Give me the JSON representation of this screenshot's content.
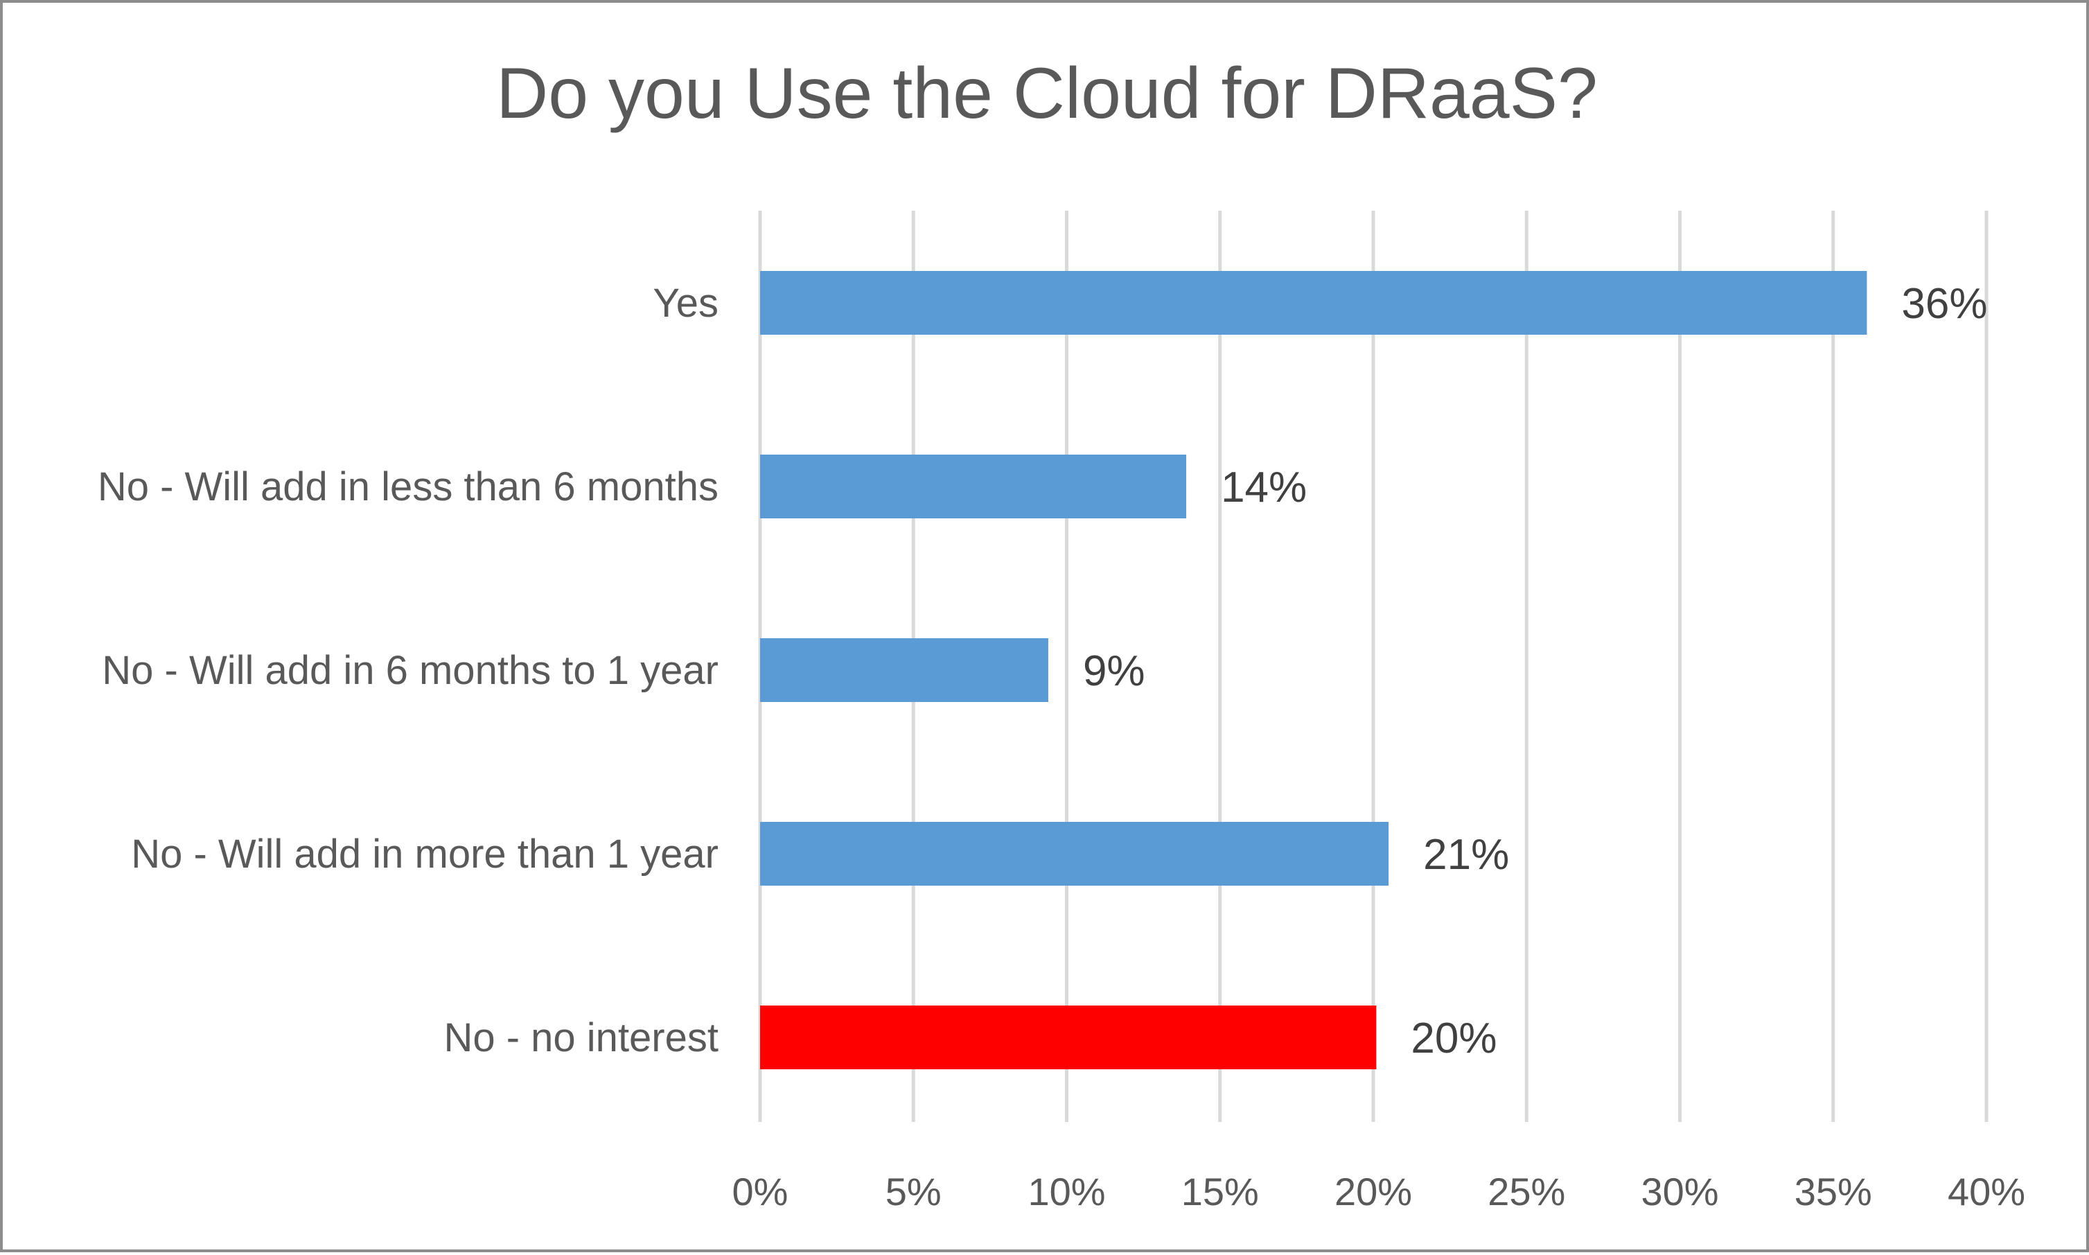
{
  "chart_data": {
    "type": "bar",
    "orientation": "horizontal",
    "title": "Do you Use the Cloud for DRaaS?",
    "xlabel": "",
    "ylabel": "",
    "categories": [
      "Yes",
      "No - Will add in less than 6 months",
      "No - Will add in 6 months to 1 year",
      "No - Will add in more than 1 year",
      "No - no interest"
    ],
    "values": [
      36.1,
      13.9,
      9.4,
      20.5,
      20.1
    ],
    "data_labels": [
      "36%",
      "14%",
      "9%",
      "21%",
      "20%"
    ],
    "bar_colors": [
      "#5b9bd5",
      "#5b9bd5",
      "#5b9bd5",
      "#5b9bd5",
      "#ff0000"
    ],
    "xlim": [
      0,
      40
    ],
    "x_ticks": [
      0,
      5,
      10,
      15,
      20,
      25,
      30,
      35,
      40
    ],
    "x_tick_labels": [
      "0%",
      "5%",
      "10%",
      "15%",
      "20%",
      "25%",
      "30%",
      "35%",
      "40%"
    ],
    "grid": true,
    "legend": "none"
  }
}
